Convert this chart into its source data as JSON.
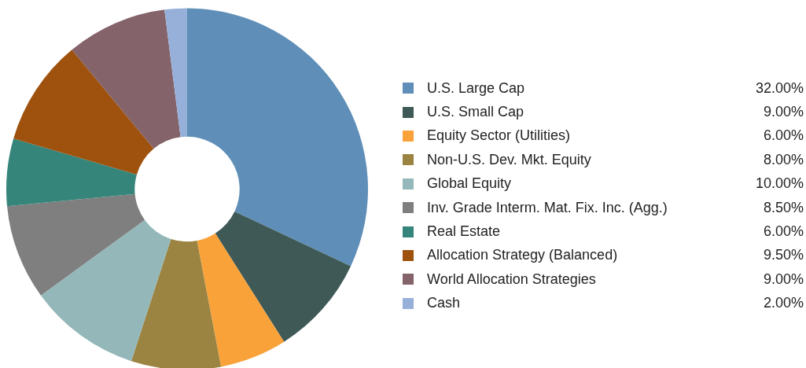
{
  "chart_data": {
    "type": "donut",
    "categories": [
      "U.S. Large Cap",
      "U.S. Small Cap",
      "Equity Sector (Utilities)",
      "Non-U.S. Dev. Mkt. Equity",
      "Global Equity",
      "Inv. Grade Interm. Mat. Fix. Inc. (Agg.)",
      "Real Estate",
      "Allocation Strategy (Balanced)",
      "World Allocation Strategies",
      "Cash"
    ],
    "values": [
      32,
      9,
      6,
      8,
      10,
      8.5,
      6,
      9.5,
      9,
      2
    ],
    "value_labels": [
      "32.00%",
      "9.00%",
      "6.00%",
      "8.00%",
      "10.00%",
      "8.50%",
      "6.00%",
      "9.50%",
      "9.00%",
      "2.00%"
    ],
    "colors": [
      "#5f8fb8",
      "#3f5a56",
      "#f9a23a",
      "#9b8441",
      "#94b7b9",
      "#7f7f7f",
      "#35857a",
      "#9e520e",
      "#84636a",
      "#97b0d9"
    ],
    "legend": "right"
  }
}
